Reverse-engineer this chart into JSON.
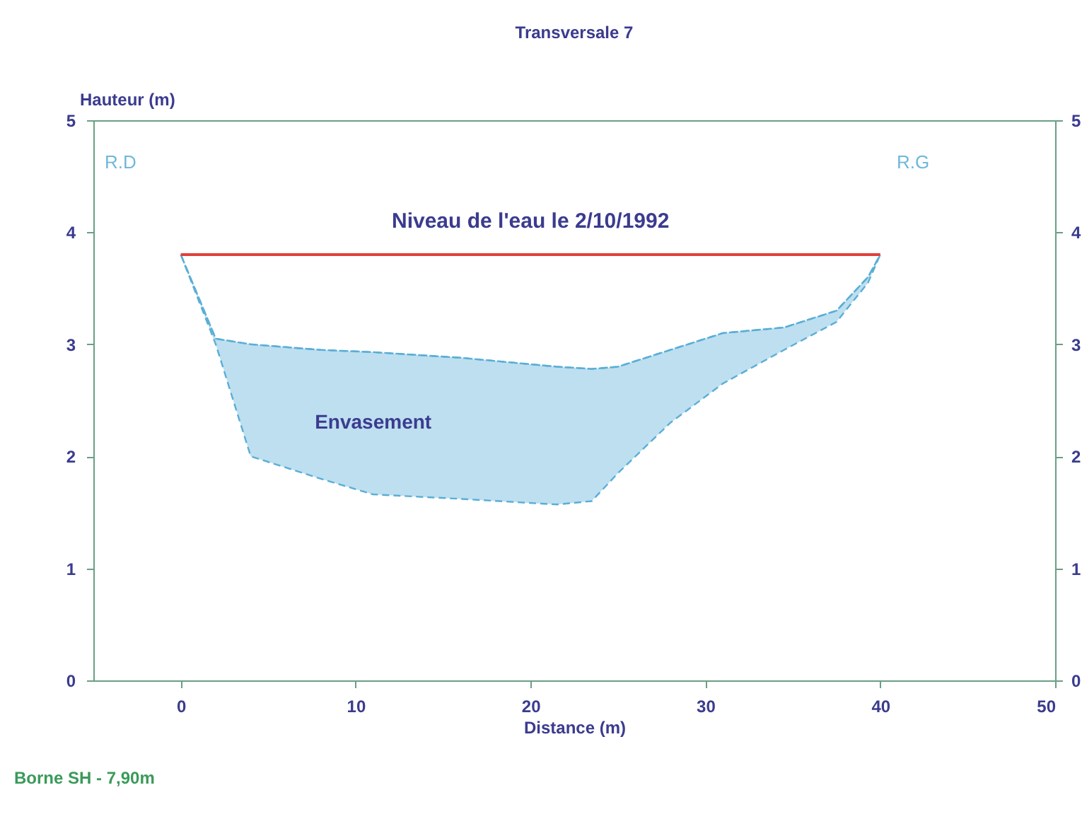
{
  "chart_data": {
    "type": "line",
    "title": "Transversale 7",
    "xlabel": "Distance (m)",
    "ylabel": "Hauteur (m)",
    "x": [
      0,
      2,
      4,
      8,
      11,
      16,
      21.5,
      23.5,
      25,
      28,
      31,
      34.5,
      37.5,
      39.3,
      40
    ],
    "series": [
      {
        "name": "Envasement",
        "color": "#5aaed6",
        "line_style": "dashed",
        "values": [
          3.8,
          3.05,
          3.0,
          2.95,
          2.93,
          2.88,
          2.8,
          2.78,
          2.8,
          2.95,
          3.1,
          3.15,
          3.3,
          3.6,
          3.8
        ],
        "upper": [
          3.8,
          3.05,
          3.0,
          2.95,
          2.93,
          2.88,
          2.8,
          2.78,
          2.8,
          2.95,
          3.1,
          3.15,
          3.3,
          3.6,
          3.8
        ],
        "lower": [
          3.8,
          3.0,
          2.0,
          1.8,
          1.66,
          1.62,
          1.57,
          1.6,
          1.85,
          2.3,
          2.65,
          2.95,
          3.2,
          3.55,
          3.8
        ]
      },
      {
        "name": "Niveau de l'eau le 2/10/1992",
        "color": "#e0403a",
        "x": [
          0,
          40
        ],
        "values": [
          3.8,
          3.8
        ]
      }
    ],
    "annotations": [
      "R.D",
      "R.G",
      "Borne SH - 7,90m"
    ],
    "xlim": [
      -5,
      50
    ],
    "xticks": [
      0,
      10,
      20,
      30,
      40,
      50
    ],
    "ylim": [
      0,
      5
    ],
    "yticks": [
      0,
      1,
      2,
      3,
      4,
      5
    ],
    "y2lim": [
      0,
      5
    ],
    "y2ticks": [
      0,
      1,
      2,
      3,
      4,
      5
    ],
    "grid": false
  }
}
